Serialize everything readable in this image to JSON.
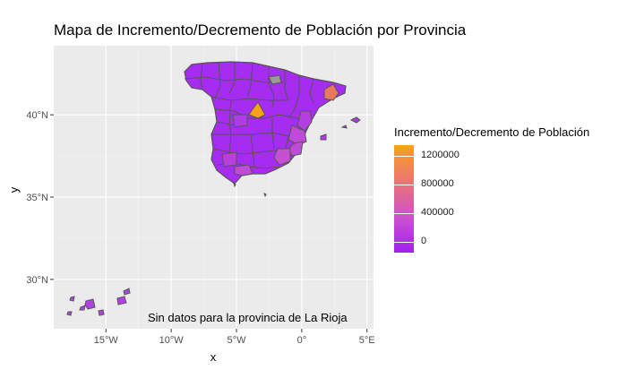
{
  "title": "Mapa de Incremento/Decremento de Población por Provincia",
  "annotation": "Sin datos para la provincia de La Rioja",
  "x_axis": {
    "title": "x",
    "range": [
      -19,
      5.5
    ],
    "ticks": [
      {
        "value": -15,
        "label": "15°W"
      },
      {
        "value": -10,
        "label": "10°W"
      },
      {
        "value": -5,
        "label": "5°W"
      },
      {
        "value": 0,
        "label": "0°"
      },
      {
        "value": 5,
        "label": "5°E"
      }
    ]
  },
  "y_axis": {
    "title": "y",
    "range": [
      27,
      44.2
    ],
    "ticks": [
      {
        "value": 40,
        "label": "40°N"
      },
      {
        "value": 35,
        "label": "35°N"
      },
      {
        "value": 30,
        "label": "30°N"
      }
    ]
  },
  "legend": {
    "title": "Incremento/Decremento de Población",
    "range": [
      -150000,
      1350000
    ],
    "ticks": [
      {
        "value": 1200000,
        "label": "1200000"
      },
      {
        "value": 800000,
        "label": "800000"
      },
      {
        "value": 400000,
        "label": "400000"
      },
      {
        "value": 0,
        "label": "0"
      }
    ]
  },
  "colors": {
    "panel_bg": "#ebebeb",
    "grid": "#ffffff",
    "border": "#555555",
    "base": "#a52cf0",
    "low": "#a020f0",
    "mid": "#d25fcc",
    "high": "#f7a21b",
    "na": "#9a9a9a"
  }
}
